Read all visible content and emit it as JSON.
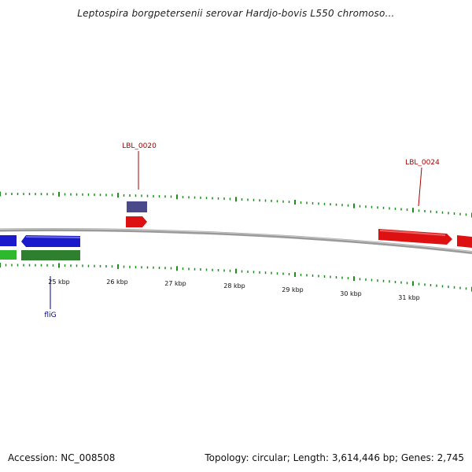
{
  "map": {
    "title": "Leptospira borgpetersenii serovar Hardjo-bovis L550 chromoso…",
    "accession_text": "Accession: NC_008508",
    "summary_text": "Topology: circular; Length: 3,614,446 bp; Genes: 2,745"
  },
  "colors": {
    "backbone": "#8a8a8a",
    "tick_green": "#1e8f1e",
    "forward_cds": "#dd1111",
    "reverse_cds": "#1a1acc",
    "forward_gene": "#2db82d",
    "reverse_gene": "#2e7f2e",
    "other_feature": "#4a4a8a",
    "label_red": "#aa0000",
    "label_blue": "#000088"
  },
  "scale": {
    "kbp_labels": [
      "25 kbp",
      "26 kbp",
      "27 kbp",
      "28 kbp",
      "29 kbp",
      "30 kbp",
      "31 kbp"
    ]
  },
  "labels": [
    {
      "name": "LBL_0020",
      "color": "label_red"
    },
    {
      "name": "LBL_0024",
      "color": "label_red"
    },
    {
      "name": "fliG",
      "color": "label_blue"
    }
  ]
}
